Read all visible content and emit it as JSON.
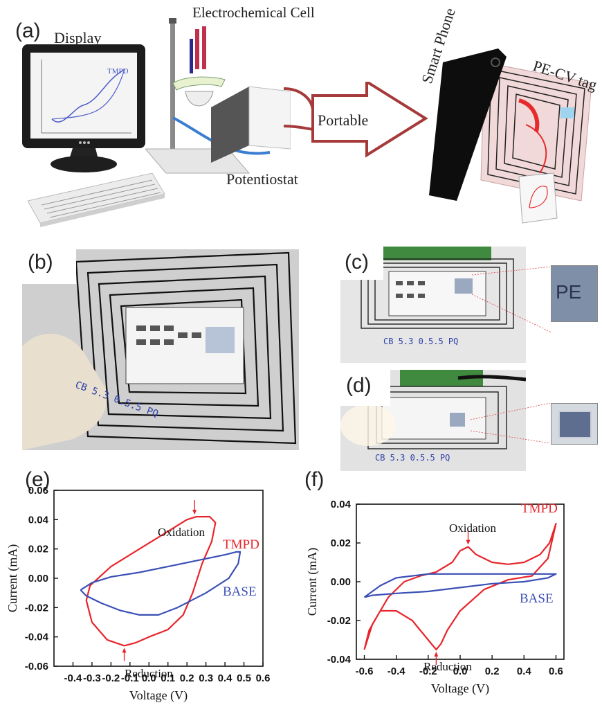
{
  "panel_a": {
    "label": "(a)",
    "display_label": "Display",
    "screen_curve_label": "TMPD",
    "cell_label": "Electrochemical Cell",
    "potentiostat_label": "Potentiostat",
    "arrow_label": "Portable",
    "phone_label": "Smart Phone",
    "tag_label": "PE-CV tag"
  },
  "panel_b": {
    "label": "(b)",
    "handwriting": "CB 5.3 0.5.5 PQ"
  },
  "panel_c": {
    "label": "(c)",
    "inset_text": "PE",
    "handwriting": "CB 5.3 0.5.5 PQ"
  },
  "panel_d": {
    "label": "(d)",
    "handwriting": "CB 5.3 0.5.5 PQ"
  },
  "colors": {
    "tmpd": "#e8252b",
    "base": "#3a4fb5",
    "arrow": "#a63a3a"
  },
  "chart_data": [
    {
      "panel": "(e)",
      "type": "line",
      "xlabel": "Voltage (V)",
      "ylabel": "Current (mA)",
      "xlim": [
        -0.5,
        0.6
      ],
      "ylim": [
        -0.06,
        0.06
      ],
      "xticks": [
        -0.4,
        -0.3,
        -0.2,
        -0.1,
        0.0,
        0.1,
        0.2,
        0.3,
        0.4,
        0.5,
        0.6
      ],
      "xtick_labels": [
        "-0.4",
        "-0.3",
        "-0.2",
        "-0.1",
        "0.0",
        "0.1",
        "0.2",
        "0.3",
        "0.4",
        "0.5",
        "0.6"
      ],
      "yticks": [
        -0.06,
        -0.04,
        -0.02,
        0.0,
        0.02,
        0.04,
        0.06
      ],
      "ytick_labels": [
        "-0.06",
        "-0.04",
        "-0.02",
        "0.00",
        "0.02",
        "0.04",
        "0.06"
      ],
      "series": [
        {
          "name": "TMPD",
          "color": "#e8252b",
          "x": [
            -0.13,
            -0.22,
            -0.3,
            -0.33,
            -0.31,
            -0.2,
            -0.05,
            0.1,
            0.2,
            0.25,
            0.32,
            0.35,
            0.33,
            0.28,
            0.23,
            0.18,
            0.1,
            0.0,
            -0.07,
            -0.13
          ],
          "y": [
            -0.046,
            -0.042,
            -0.03,
            -0.015,
            -0.005,
            0.008,
            0.02,
            0.032,
            0.04,
            0.042,
            0.042,
            0.038,
            0.025,
            0.01,
            -0.01,
            -0.025,
            -0.035,
            -0.04,
            -0.044,
            -0.046
          ]
        },
        {
          "name": "BASE",
          "color": "#3a4fb5",
          "x": [
            -0.36,
            -0.3,
            -0.2,
            -0.05,
            0.1,
            0.25,
            0.4,
            0.46,
            0.48,
            0.47,
            0.42,
            0.3,
            0.15,
            0.05,
            -0.05,
            -0.15,
            -0.25,
            -0.33,
            -0.36
          ],
          "y": [
            -0.008,
            -0.003,
            0.001,
            0.004,
            0.008,
            0.012,
            0.016,
            0.018,
            0.018,
            0.01,
            0.0,
            -0.01,
            -0.02,
            -0.025,
            -0.025,
            -0.022,
            -0.017,
            -0.012,
            -0.008
          ]
        }
      ],
      "annotations": [
        {
          "text": "Oxidation",
          "x": 0.24,
          "y": 0.042
        },
        {
          "text": "Reduction",
          "x": -0.13,
          "y": -0.046
        }
      ]
    },
    {
      "panel": "(f)",
      "type": "line",
      "xlabel": "Voltage (V)",
      "ylabel": "Current (mA)",
      "xlim": [
        -0.65,
        0.65
      ],
      "ylim": [
        -0.04,
        0.04
      ],
      "xticks": [
        -0.6,
        -0.4,
        -0.2,
        0.0,
        0.2,
        0.4,
        0.6
      ],
      "xtick_labels": [
        "-0.6",
        "-0.4",
        "-0.2",
        "0.0",
        "0.2",
        "0.4",
        "0.6"
      ],
      "yticks": [
        -0.04,
        -0.02,
        0.0,
        0.02,
        0.04
      ],
      "ytick_labels": [
        "-0.04",
        "-0.02",
        "0.00",
        "0.02",
        "0.04"
      ],
      "series": [
        {
          "name": "TMPD",
          "color": "#e8252b",
          "x": [
            -0.6,
            -0.55,
            -0.45,
            -0.35,
            -0.25,
            -0.15,
            -0.05,
            0.0,
            0.05,
            0.1,
            0.2,
            0.3,
            0.4,
            0.5,
            0.56,
            0.6,
            0.55,
            0.45,
            0.3,
            0.15,
            0.0,
            -0.08,
            -0.12,
            -0.15,
            -0.2,
            -0.3,
            -0.4,
            -0.5,
            -0.57,
            -0.6
          ],
          "y": [
            -0.035,
            -0.022,
            -0.008,
            0.0,
            0.003,
            0.005,
            0.01,
            0.016,
            0.018,
            0.014,
            0.01,
            0.009,
            0.01,
            0.014,
            0.02,
            0.03,
            0.012,
            0.003,
            0.001,
            -0.004,
            -0.015,
            -0.025,
            -0.032,
            -0.035,
            -0.03,
            -0.02,
            -0.015,
            -0.015,
            -0.025,
            -0.035
          ]
        },
        {
          "name": "BASE",
          "color": "#3a4fb5",
          "x": [
            -0.6,
            -0.5,
            -0.4,
            -0.2,
            0.0,
            0.2,
            0.4,
            0.55,
            0.6,
            0.55,
            0.4,
            0.2,
            0.0,
            -0.2,
            -0.4,
            -0.55,
            -0.6
          ],
          "y": [
            -0.008,
            -0.002,
            0.002,
            0.004,
            0.004,
            0.004,
            0.004,
            0.004,
            0.004,
            0.002,
            0.0,
            -0.001,
            -0.003,
            -0.005,
            -0.006,
            -0.007,
            -0.008
          ]
        }
      ],
      "annotations": [
        {
          "text": "Oxidation",
          "x": 0.05,
          "y": 0.018
        },
        {
          "text": "Reduction",
          "x": -0.15,
          "y": -0.035
        }
      ]
    }
  ]
}
